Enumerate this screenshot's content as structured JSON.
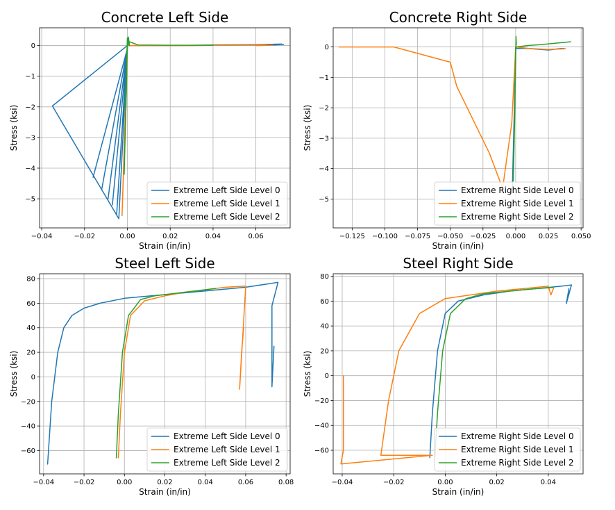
{
  "chart_data": [
    {
      "type": "line",
      "title": "Concrete Left Side",
      "xlabel": "Strain (in/in)",
      "ylabel": "Stress (ksi)",
      "xlim": [
        -0.041,
        0.076
      ],
      "ylim": [
        -5.95,
        0.58
      ],
      "xticks": [
        -0.04,
        -0.02,
        0.0,
        0.02,
        0.04,
        0.06
      ],
      "xtick_labels": [
        "−0.04",
        "−0.02",
        "0.00",
        "0.02",
        "0.04",
        "0.06"
      ],
      "yticks": [
        -5,
        -4,
        -3,
        -2,
        -1,
        0
      ],
      "ytick_labels": [
        "−5",
        "−4",
        "−3",
        "−2",
        "−1",
        "0"
      ],
      "grid": true,
      "legend_position": "lower-right",
      "series": [
        {
          "name": "Extreme Left Side Level 0",
          "color": "#1f77b4",
          "x": [
            0.0,
            -0.035,
            -0.004,
            0.0,
            -0.016,
            0.0,
            -0.012,
            0.0,
            -0.009,
            0.0,
            -0.007,
            0.0,
            -0.005,
            0.0,
            0.02,
            0.04,
            0.06,
            0.072,
            0.068,
            0.073
          ],
          "y": [
            0.0,
            -1.97,
            -5.65,
            -0.1,
            -4.3,
            -0.1,
            -4.7,
            -0.1,
            -5.0,
            -0.1,
            -5.2,
            -0.1,
            -5.5,
            0.0,
            0.0,
            0.02,
            0.03,
            0.05,
            0.02,
            0.04
          ]
        },
        {
          "name": "Extreme Left Side Level 1",
          "color": "#ff7f0e",
          "x": [
            0.0,
            -0.002,
            -0.0025,
            -0.001,
            0.0,
            -0.001,
            0.0,
            0.01,
            0.03,
            0.05,
            0.065,
            0.06,
            0.068
          ],
          "y": [
            0.1,
            -4.5,
            -5.55,
            -2.5,
            -0.1,
            -3.0,
            0.0,
            0.0,
            0.0,
            0.01,
            0.02,
            0.0,
            0.01
          ]
        },
        {
          "name": "Extreme Left Side Level 2",
          "color": "#2ca02c",
          "x": [
            0.0,
            -0.0015,
            -0.0005,
            0.0,
            -0.001,
            0.0,
            0.0005,
            0.001,
            0.0,
            0.005,
            0.02,
            0.04
          ],
          "y": [
            0.1,
            -4.2,
            -1.5,
            0.25,
            -2.0,
            -0.1,
            0.28,
            0.0,
            0.15,
            0.02,
            0.01,
            0.01
          ]
        }
      ]
    },
    {
      "type": "line",
      "title": "Concrete Right Side",
      "xlabel": "Strain (in/in)",
      "ylabel": "Stress (ksi)",
      "xlim": [
        -0.1395,
        0.0515
      ],
      "ylim": [
        -5.95,
        0.63
      ],
      "xticks": [
        -0.125,
        -0.1,
        -0.075,
        -0.05,
        -0.025,
        0.0,
        0.025,
        0.05
      ],
      "xtick_labels": [
        "−0.125",
        "−0.100",
        "−0.075",
        "−0.050",
        "−0.025",
        "0.000",
        "0.025",
        "0.050"
      ],
      "yticks": [
        -5,
        -4,
        -3,
        -2,
        -1,
        0
      ],
      "ytick_labels": [
        "−5",
        "−4",
        "−3",
        "−2",
        "−1",
        "0"
      ],
      "grid": true,
      "legend_position": "lower-right",
      "series": [
        {
          "name": "Extreme Right Side Level 0",
          "color": "#1f77b4",
          "x": [
            0.0,
            -0.0015,
            -0.0025,
            -0.001,
            0.0,
            0.0008,
            0.01,
            0.025,
            0.035,
            0.028,
            0.037
          ],
          "y": [
            0.0,
            -3.0,
            -4.6,
            -2.0,
            0.0,
            -0.05,
            -0.05,
            -0.1,
            -0.05,
            -0.08,
            -0.05
          ]
        },
        {
          "name": "Extreme Right Side Level 1",
          "color": "#ff7f0e",
          "x": [
            -0.135,
            -0.093,
            -0.05,
            -0.045,
            -0.02,
            -0.01,
            -0.003,
            0.0,
            0.01,
            0.025,
            0.038
          ],
          "y": [
            0.0,
            0.0,
            -0.5,
            -1.3,
            -3.5,
            -4.65,
            -2.5,
            0.0,
            -0.05,
            -0.08,
            -0.06
          ]
        },
        {
          "name": "Extreme Right Side Level 2",
          "color": "#2ca02c",
          "x": [
            0.0,
            -0.0008,
            -0.0018,
            0.0,
            0.0002,
            0.0005,
            0.0,
            0.01,
            0.02,
            0.03,
            0.042
          ],
          "y": [
            0.0,
            -2.5,
            -4.4,
            -0.5,
            0.35,
            0.1,
            0.0,
            0.05,
            0.08,
            0.12,
            0.17
          ]
        }
      ]
    },
    {
      "type": "line",
      "title": "Steel Left Side",
      "xlabel": "Strain (in/in)",
      "ylabel": "Stress (ksi)",
      "xlim": [
        -0.042,
        0.082
      ],
      "ylim": [
        -79,
        84
      ],
      "xticks": [
        -0.04,
        -0.02,
        0.0,
        0.02,
        0.04,
        0.06,
        0.08
      ],
      "xtick_labels": [
        "−0.04",
        "−0.02",
        "0.00",
        "0.02",
        "0.04",
        "0.06",
        "0.08"
      ],
      "yticks": [
        -60,
        -40,
        -20,
        0,
        20,
        40,
        60,
        80
      ],
      "ytick_labels": [
        "−60",
        "−40",
        "−20",
        "0",
        "20",
        "40",
        "60",
        "80"
      ],
      "grid": true,
      "legend_position": "lower-right",
      "series": [
        {
          "name": "Extreme Left Side Level 0",
          "color": "#1f77b4",
          "x": [
            -0.038,
            -0.036,
            -0.033,
            -0.03,
            -0.026,
            -0.02,
            -0.012,
            0.0,
            0.02,
            0.04,
            0.06,
            0.076,
            0.073,
            0.073,
            0.074
          ],
          "y": [
            -71,
            -20,
            20,
            40,
            50,
            56,
            60,
            64,
            67,
            70,
            73,
            77,
            58,
            -8,
            25
          ]
        },
        {
          "name": "Extreme Left Side Level 1",
          "color": "#ff7f0e",
          "x": [
            -0.003,
            -0.002,
            0.0,
            0.003,
            0.01,
            0.02,
            0.03,
            0.04,
            0.05,
            0.06,
            0.057,
            0.058,
            0.059
          ],
          "y": [
            -66,
            -30,
            20,
            50,
            62,
            66,
            69,
            71,
            73,
            74,
            -10,
            20,
            40
          ]
        },
        {
          "name": "Extreme Left Side Level 2",
          "color": "#2ca02c",
          "x": [
            -0.004,
            -0.003,
            -0.001,
            0.002,
            0.008,
            0.015,
            0.025,
            0.035,
            0.045
          ],
          "y": [
            -66,
            -30,
            20,
            50,
            63,
            66,
            68,
            70,
            72
          ]
        }
      ]
    },
    {
      "type": "line",
      "title": "Steel Right Side",
      "xlabel": "Strain (in/in)",
      "ylabel": "Stress (ksi)",
      "xlim": [
        -0.0435,
        0.0535
      ],
      "ylim": [
        -79,
        82
      ],
      "xticks": [
        -0.04,
        -0.02,
        0.0,
        0.02,
        0.04
      ],
      "xtick_labels": [
        "−0.04",
        "−0.02",
        "0.00",
        "0.02",
        "0.04"
      ],
      "yticks": [
        -60,
        -40,
        -20,
        0,
        20,
        40,
        60,
        80
      ],
      "ytick_labels": [
        "−60",
        "−40",
        "−20",
        "0",
        "20",
        "40",
        "60",
        "80"
      ],
      "grid": true,
      "legend_position": "lower-right",
      "series": [
        {
          "name": "Extreme Right Side Level 0",
          "color": "#1f77b4",
          "x": [
            -0.006,
            -0.005,
            -0.003,
            0.0,
            0.005,
            0.015,
            0.025,
            0.035,
            0.045,
            0.049,
            0.047,
            0.048
          ],
          "y": [
            -66,
            -30,
            20,
            50,
            60,
            65,
            68,
            70,
            72,
            73,
            58,
            70
          ]
        },
        {
          "name": "Extreme Right Side Level 1",
          "color": "#ff7f0e",
          "x": [
            -0.0395,
            -0.0395,
            -0.0405,
            -0.02,
            -0.005,
            -0.025,
            -0.022,
            -0.018,
            -0.01,
            0.0,
            0.02,
            0.04,
            0.041,
            0.042
          ],
          "y": [
            0,
            -60,
            -71,
            -67,
            -64,
            -64,
            -20,
            20,
            50,
            62,
            68,
            72,
            65,
            70
          ]
        },
        {
          "name": "Extreme Right Side Level 2",
          "color": "#2ca02c",
          "x": [
            -0.004,
            -0.003,
            -0.001,
            0.002,
            0.008,
            0.015,
            0.025,
            0.035,
            0.042
          ],
          "y": [
            -65,
            -30,
            20,
            50,
            62,
            66,
            68,
            70,
            71
          ]
        }
      ]
    }
  ]
}
